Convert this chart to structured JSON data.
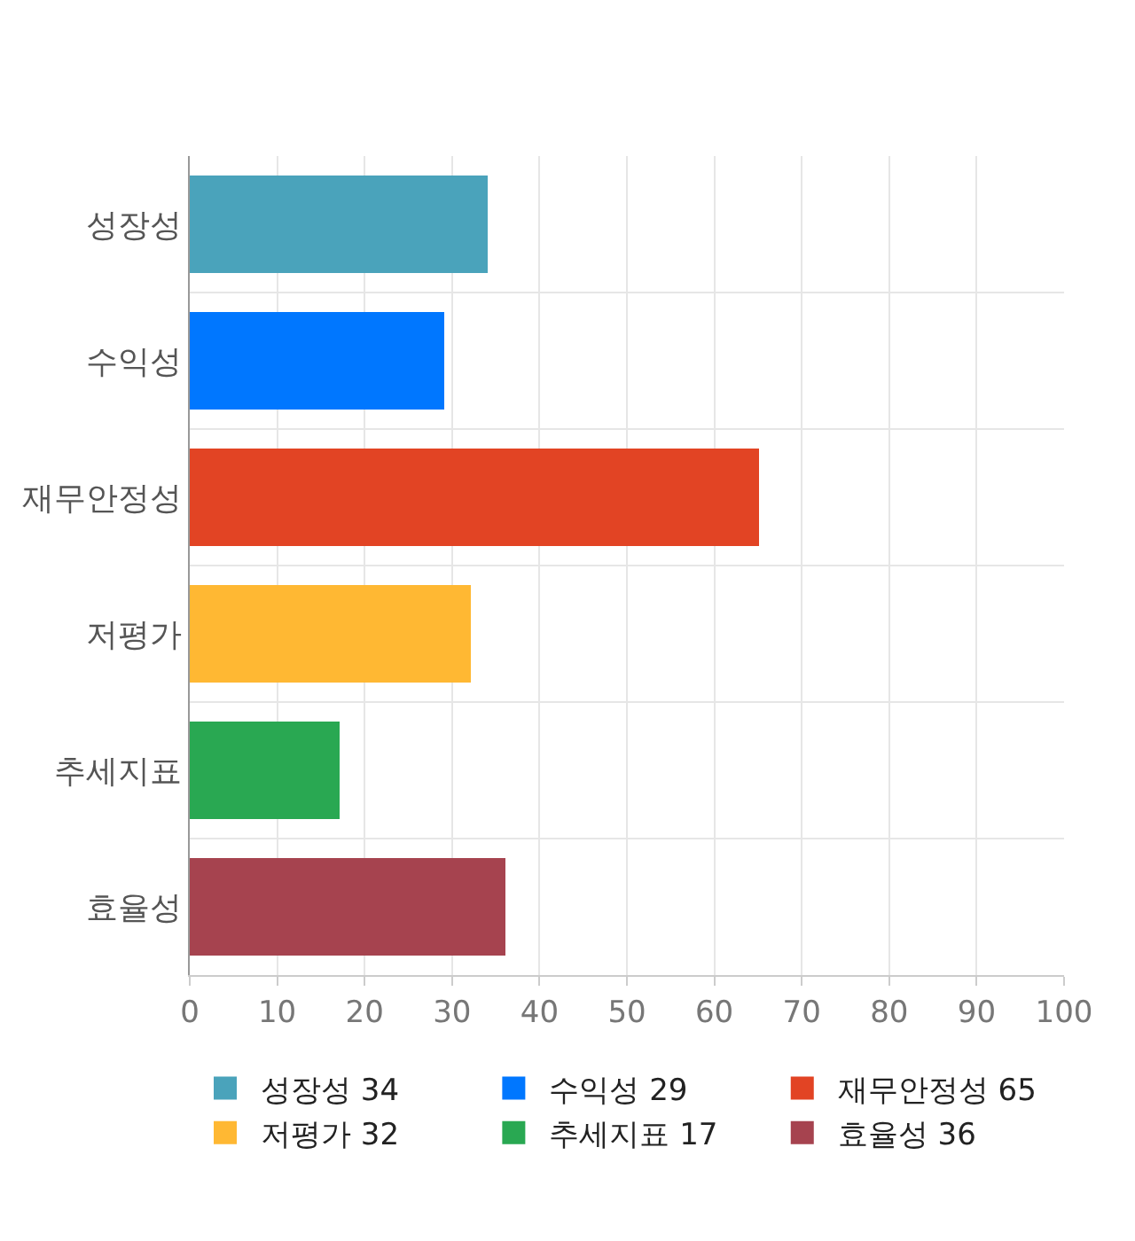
{
  "chart_data": {
    "type": "bar",
    "orientation": "horizontal",
    "stacked": true,
    "categories": [
      "성장성",
      "수익성",
      "재무안정성",
      "저평가",
      "추세지표",
      "효율성"
    ],
    "series": [
      {
        "name": "성장성 34",
        "color": "#4aa3bb",
        "values": [
          34,
          null,
          null,
          null,
          null,
          null
        ]
      },
      {
        "name": "수익성 29",
        "color": "#0077ff",
        "values": [
          null,
          29,
          null,
          null,
          null,
          null
        ]
      },
      {
        "name": "재무안정성 65",
        "color": "#e24424",
        "values": [
          null,
          null,
          65,
          null,
          null,
          null
        ]
      },
      {
        "name": "저평가 32",
        "color": "#ffb833",
        "values": [
          null,
          null,
          null,
          32,
          null,
          null
        ]
      },
      {
        "name": "추세지표 17",
        "color": "#29a852",
        "values": [
          null,
          null,
          null,
          null,
          17,
          null
        ]
      },
      {
        "name": "효율성 36",
        "color": "#a6434f",
        "values": [
          null,
          null,
          null,
          null,
          null,
          36
        ]
      }
    ],
    "xlim": [
      0,
      100
    ],
    "xticks": [
      0,
      10,
      20,
      30,
      40,
      50,
      60,
      70,
      80,
      90,
      100
    ],
    "grid": true,
    "legend": "bottom"
  }
}
